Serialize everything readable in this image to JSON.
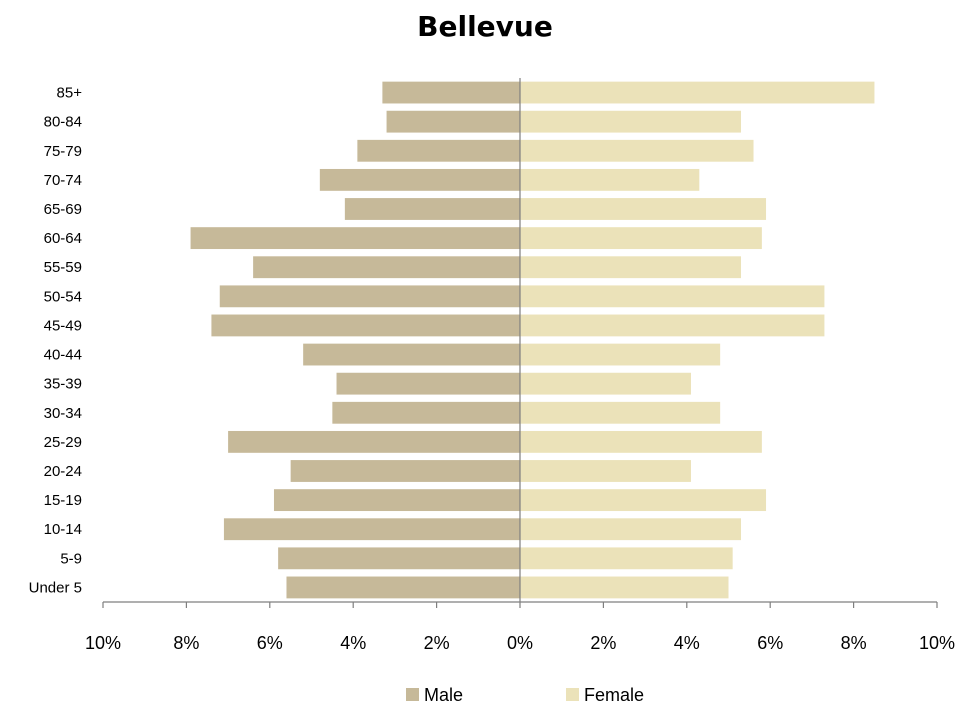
{
  "chart_data": {
    "type": "bar",
    "orientation": "horizontal",
    "title": "Bellevue",
    "categories": [
      "Under 5",
      "5-9",
      "10-14",
      "15-19",
      "20-24",
      "25-29",
      "30-34",
      "35-39",
      "40-44",
      "45-49",
      "50-54",
      "55-59",
      "60-64",
      "65-69",
      "70-74",
      "75-79",
      "80-84",
      "85+"
    ],
    "series": [
      {
        "name": "Male",
        "color": "#c6b999",
        "values": [
          5.6,
          5.8,
          7.1,
          5.9,
          5.5,
          7.0,
          4.5,
          4.4,
          5.2,
          7.4,
          7.2,
          6.4,
          7.9,
          4.2,
          4.8,
          3.9,
          3.2,
          3.3
        ]
      },
      {
        "name": "Female",
        "color": "#ebe2b9",
        "values": [
          5.0,
          5.1,
          5.3,
          5.9,
          4.1,
          5.8,
          4.8,
          4.1,
          4.8,
          7.3,
          7.3,
          5.3,
          5.8,
          5.9,
          4.3,
          5.6,
          5.3,
          8.5
        ]
      }
    ],
    "xlim": [
      -10,
      10
    ],
    "xticks": [
      -10,
      -8,
      -6,
      -4,
      -2,
      0,
      2,
      4,
      6,
      8,
      10
    ],
    "xtick_labels": [
      "10%",
      "8%",
      "6%",
      "4%",
      "2%",
      "0%",
      "2%",
      "4%",
      "6%",
      "8%",
      "10%"
    ],
    "grid": false,
    "legend_position": "bottom"
  }
}
